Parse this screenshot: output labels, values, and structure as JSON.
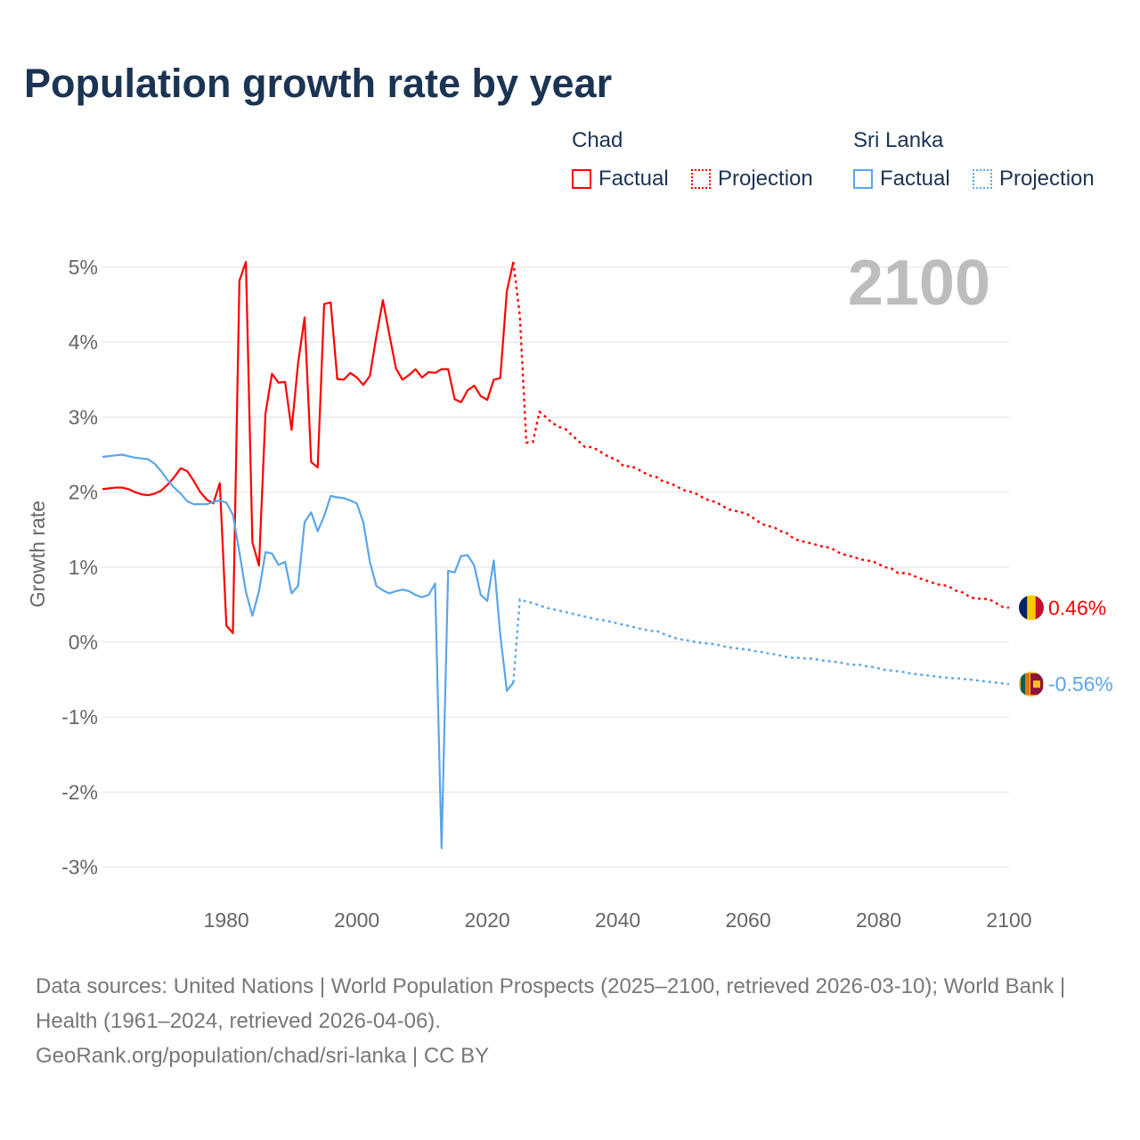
{
  "title": "Population growth rate by year",
  "legend": [
    {
      "country": "Chad",
      "color": "#ff0000",
      "factual": "Factual",
      "projection": "Projection"
    },
    {
      "country": "Sri Lanka",
      "color": "#5aa5ea",
      "factual": "Factual",
      "projection": "Projection"
    }
  ],
  "chart_data": {
    "type": "line",
    "title": "Population growth rate by year",
    "ylabel": "Growth rate",
    "xlabel": "",
    "xlim": [
      1961,
      2100
    ],
    "ylim": [
      -3.3,
      5.2
    ],
    "x_ticks": [
      1980,
      2000,
      2020,
      2040,
      2060,
      2080,
      2100
    ],
    "y_ticks": [
      -3,
      -2,
      -1,
      0,
      1,
      2,
      3,
      4,
      5
    ],
    "y_tick_labels": [
      "-3%",
      "-2%",
      "-1%",
      "0%",
      "1%",
      "2%",
      "3%",
      "4%",
      "5%"
    ],
    "grid": true,
    "year_annotation": "2100",
    "series": [
      {
        "name": "Chad",
        "color": "#ff0000",
        "end_label": "0.46%",
        "factual_start": 1961,
        "factual": [
          2.04,
          2.05,
          2.06,
          2.06,
          2.04,
          2.0,
          1.97,
          1.96,
          1.98,
          2.02,
          2.1,
          2.2,
          2.32,
          2.28,
          2.15,
          2.0,
          1.9,
          1.85,
          2.12,
          0.22,
          0.12,
          4.82,
          5.07,
          1.33,
          1.02,
          3.05,
          3.58,
          3.46,
          3.47,
          2.83,
          3.72,
          4.33,
          2.4,
          2.33,
          4.51,
          4.53,
          3.51,
          3.5,
          3.59,
          3.53,
          3.43,
          3.55,
          4.08,
          4.56,
          4.1,
          3.65,
          3.5,
          3.56,
          3.64,
          3.53,
          3.6,
          3.59,
          3.64,
          3.64,
          3.24,
          3.2,
          3.36,
          3.42,
          3.28,
          3.23,
          3.5,
          3.52,
          4.68,
          5.07
        ],
        "projection_start": 2024,
        "projection": [
          5.07,
          4.35,
          2.66,
          2.67,
          3.07,
          3.0,
          2.92,
          2.87,
          2.84,
          2.76,
          2.68,
          2.6,
          2.6,
          2.56,
          2.5,
          2.46,
          2.42,
          2.34,
          2.35,
          2.31,
          2.26,
          2.22,
          2.2,
          2.14,
          2.12,
          2.08,
          2.03,
          2.01,
          1.98,
          1.93,
          1.89,
          1.87,
          1.82,
          1.77,
          1.75,
          1.73,
          1.7,
          1.64,
          1.58,
          1.55,
          1.53,
          1.48,
          1.45,
          1.38,
          1.35,
          1.33,
          1.31,
          1.28,
          1.27,
          1.24,
          1.19,
          1.16,
          1.14,
          1.11,
          1.09,
          1.08,
          1.04,
          1.0,
          0.98,
          0.92,
          0.92,
          0.9,
          0.86,
          0.83,
          0.8,
          0.77,
          0.76,
          0.73,
          0.68,
          0.66,
          0.6,
          0.58,
          0.58,
          0.57,
          0.52,
          0.47,
          0.46
        ]
      },
      {
        "name": "Sri Lanka",
        "color": "#5aa5ea",
        "end_label": "-0.56%",
        "factual_start": 1961,
        "factual": [
          2.47,
          2.48,
          2.49,
          2.5,
          2.48,
          2.46,
          2.45,
          2.44,
          2.38,
          2.28,
          2.16,
          2.06,
          1.98,
          1.88,
          1.84,
          1.84,
          1.84,
          1.87,
          1.89,
          1.86,
          1.7,
          1.2,
          0.67,
          0.35,
          0.68,
          1.2,
          1.18,
          1.03,
          1.07,
          0.65,
          0.75,
          1.6,
          1.73,
          1.48,
          1.68,
          1.95,
          1.93,
          1.92,
          1.89,
          1.85,
          1.6,
          1.07,
          0.75,
          0.69,
          0.65,
          0.68,
          0.7,
          0.68,
          0.63,
          0.6,
          0.63,
          0.78,
          -2.75,
          0.95,
          0.93,
          1.15,
          1.16,
          1.02,
          0.63,
          0.55,
          1.09,
          0.1,
          -0.65,
          -0.54
        ],
        "projection_start": 2024,
        "projection": [
          -0.54,
          0.57,
          0.54,
          0.52,
          0.49,
          0.46,
          0.44,
          0.42,
          0.4,
          0.38,
          0.36,
          0.34,
          0.32,
          0.3,
          0.29,
          0.27,
          0.25,
          0.23,
          0.21,
          0.19,
          0.17,
          0.15,
          0.15,
          0.11,
          0.08,
          0.05,
          0.03,
          0.02,
          0.0,
          -0.01,
          -0.02,
          -0.03,
          -0.05,
          -0.07,
          -0.08,
          -0.09,
          -0.1,
          -0.12,
          -0.13,
          -0.15,
          -0.16,
          -0.18,
          -0.2,
          -0.21,
          -0.21,
          -0.22,
          -0.22,
          -0.24,
          -0.25,
          -0.26,
          -0.27,
          -0.29,
          -0.3,
          -0.3,
          -0.32,
          -0.33,
          -0.35,
          -0.37,
          -0.38,
          -0.39,
          -0.4,
          -0.42,
          -0.43,
          -0.44,
          -0.45,
          -0.46,
          -0.47,
          -0.48,
          -0.48,
          -0.49,
          -0.5,
          -0.51,
          -0.52,
          -0.53,
          -0.54,
          -0.55,
          -0.56
        ]
      }
    ]
  },
  "footer": {
    "sources": "Data sources: United Nations | World Population Prospects (2025–2100, retrieved 2026-03-10); World Bank | Health (1961–2024, retrieved 2026-04-06).",
    "credit": "GeoRank.org/population/chad/sri-lanka | CC BY"
  }
}
